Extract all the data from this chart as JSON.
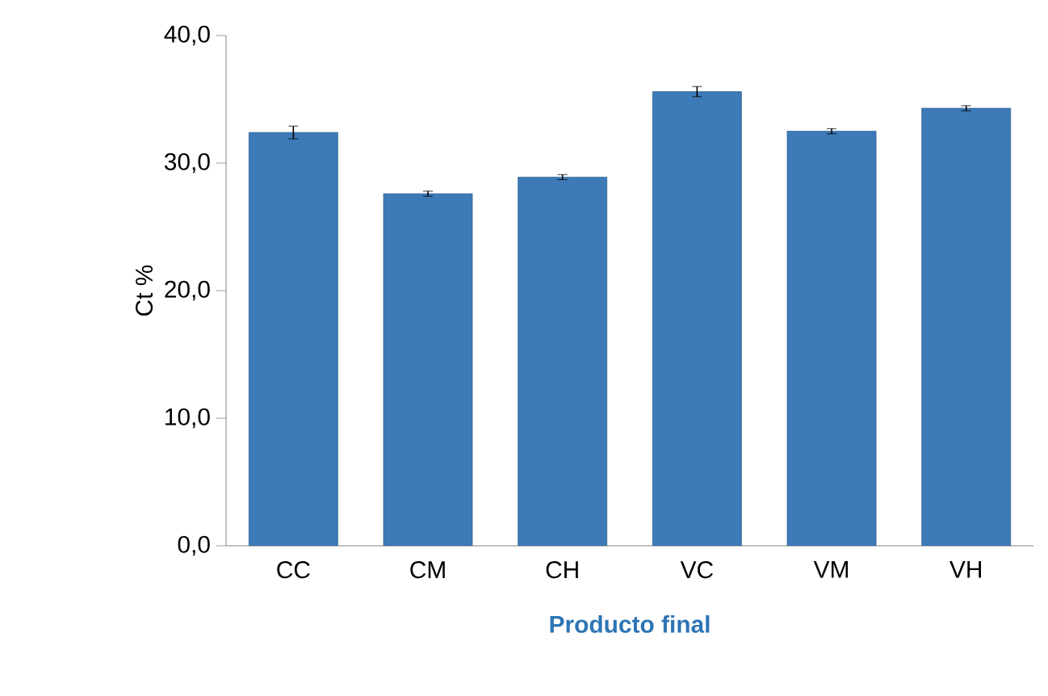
{
  "chart_data": {
    "type": "bar",
    "xlabel": "Producto final",
    "ylabel": "Ct %",
    "categories": [
      "CC",
      "CM",
      "CH",
      "VC",
      "VM",
      "VH"
    ],
    "values": [
      32.4,
      27.6,
      28.9,
      35.6,
      32.5,
      34.3
    ],
    "errors": [
      0.5,
      0.2,
      0.2,
      0.4,
      0.2,
      0.2
    ],
    "color": "#3d7ab8",
    "ylim": [
      0,
      40
    ],
    "yticks": [
      {
        "value": 0,
        "label": "0,0"
      },
      {
        "value": 10,
        "label": "10,0"
      },
      {
        "value": 20,
        "label": "20,0"
      },
      {
        "value": 30,
        "label": "30,0"
      },
      {
        "value": 40,
        "label": "40,0"
      }
    ],
    "grid": false
  }
}
